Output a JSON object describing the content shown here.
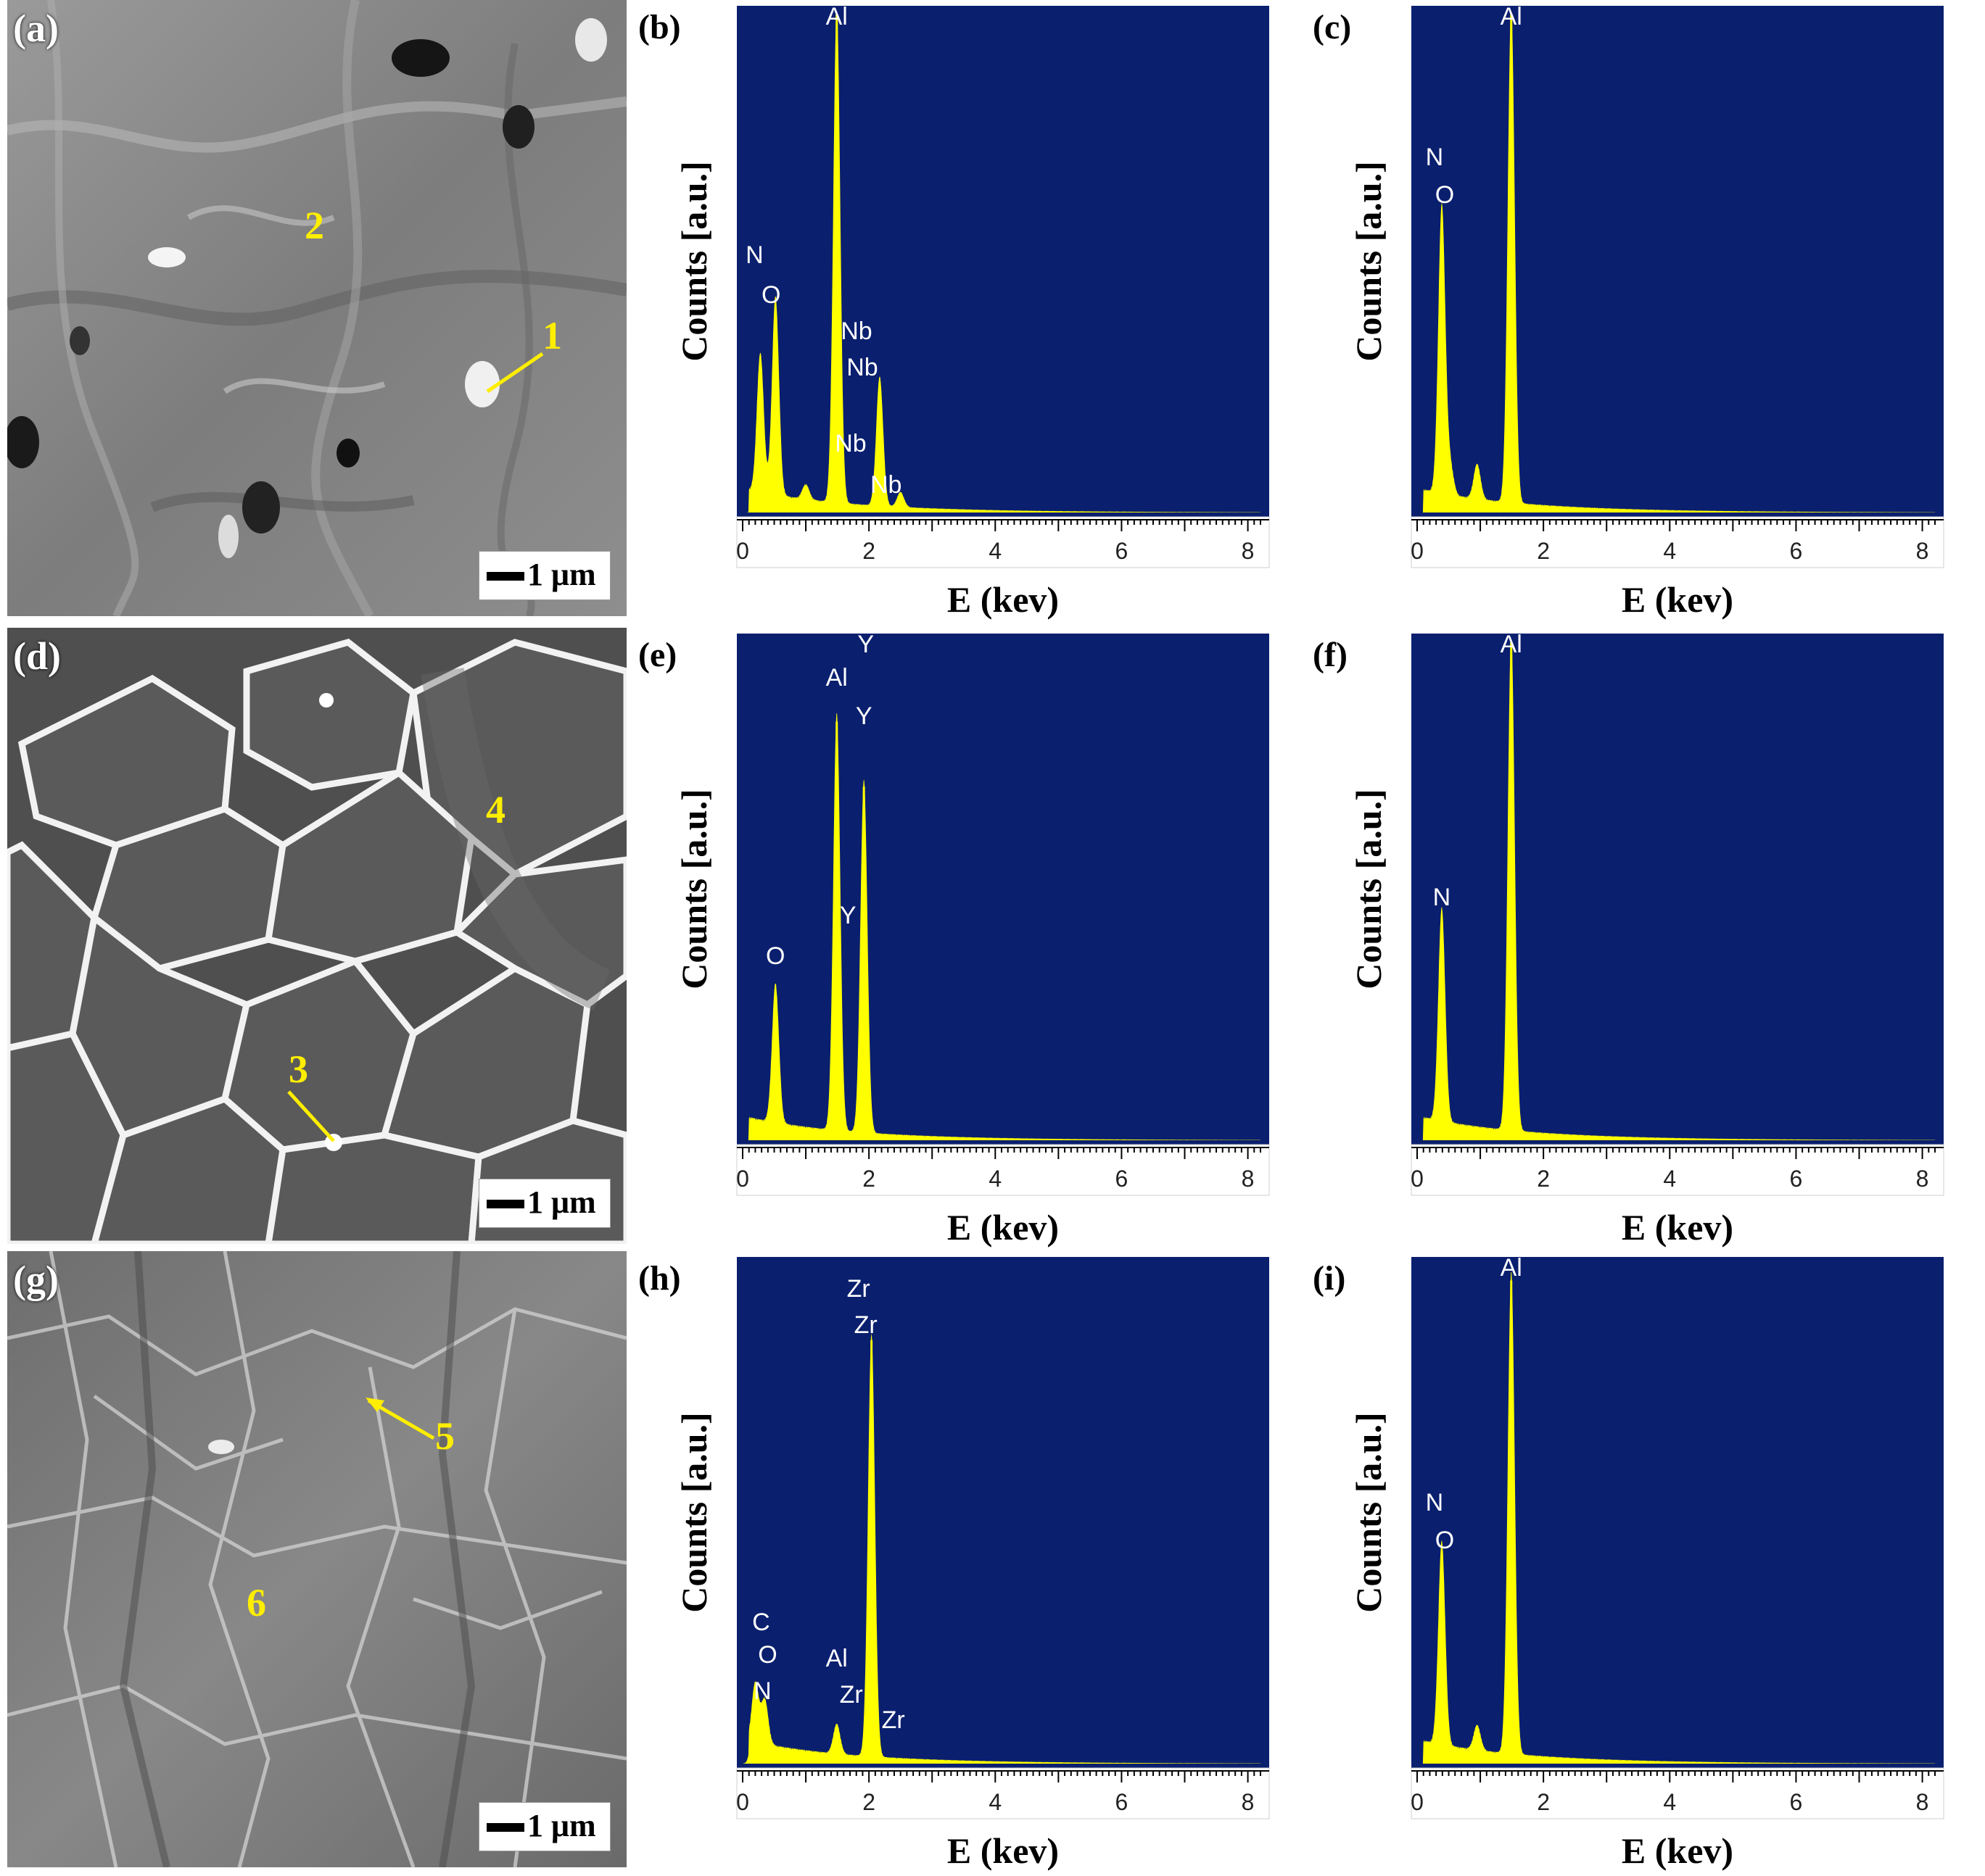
{
  "figure": {
    "scale_label": "1 μm",
    "ylabel": "Counts [a.u.]",
    "xlabel": "E (kev)",
    "x_ticks": [
      0,
      2,
      4,
      6,
      8
    ],
    "colors": {
      "plot_bg": "#0a1f6e",
      "spectrum": "#ffff00",
      "marker": "#ffee00",
      "peak_label": "#ffffff"
    }
  },
  "rows": [
    {
      "sem": {
        "tag": "(a)",
        "style": "fracture",
        "points": [
          "1",
          "2"
        ]
      },
      "eds": [
        {
          "tag": "(b)",
          "labels": [
            "Al",
            "N",
            "O",
            "Nb",
            "Nb",
            "Nb",
            "Nb"
          ]
        },
        {
          "tag": "(c)",
          "labels": [
            "Al",
            "N",
            "O"
          ]
        }
      ]
    },
    {
      "sem": {
        "tag": "(d)",
        "style": "grains",
        "points": [
          "3",
          "4"
        ]
      },
      "eds": [
        {
          "tag": "(e)",
          "labels": [
            "Y",
            "Al",
            "Y",
            "Y",
            "O"
          ]
        },
        {
          "tag": "(f)",
          "labels": [
            "Al",
            "N"
          ]
        }
      ]
    },
    {
      "sem": {
        "tag": "(g)",
        "style": "fracture",
        "points": [
          "5",
          "6"
        ]
      },
      "eds": [
        {
          "tag": "(h)",
          "labels": [
            "Zr",
            "Zr",
            "C",
            "O",
            "N",
            "Al",
            "Zr",
            "Zr"
          ]
        },
        {
          "tag": "(i)",
          "labels": [
            "Al",
            "N",
            "O"
          ]
        }
      ]
    }
  ],
  "chart_data": [
    {
      "type": "line",
      "title": "(b)",
      "xlabel": "E (kev)",
      "ylabel": "Counts [a.u.]",
      "xlim": [
        0,
        8.2
      ],
      "ylim": [
        0,
        100
      ],
      "peaks": [
        {
          "x": 0.28,
          "y": 28
        },
        {
          "x": 0.52,
          "y": 40
        },
        {
          "x": 1.0,
          "y": 3
        },
        {
          "x": 1.49,
          "y": 100
        },
        {
          "x": 2.17,
          "y": 26
        },
        {
          "x": 2.5,
          "y": 3
        }
      ]
    },
    {
      "type": "line",
      "title": "(c)",
      "xlabel": "E (kev)",
      "ylabel": "Counts [a.u.]",
      "xlim": [
        0,
        8.2
      ],
      "ylim": [
        0,
        100
      ],
      "peaks": [
        {
          "x": 0.39,
          "y": 58
        },
        {
          "x": 0.52,
          "y": 6
        },
        {
          "x": 0.95,
          "y": 7
        },
        {
          "x": 1.49,
          "y": 100
        }
      ]
    },
    {
      "type": "line",
      "title": "(e)",
      "xlabel": "E (kev)",
      "ylabel": "Counts [a.u.]",
      "xlim": [
        0,
        8.2
      ],
      "ylim": [
        0,
        100
      ],
      "peaks": [
        {
          "x": 0.52,
          "y": 28
        },
        {
          "x": 1.49,
          "y": 84
        },
        {
          "x": 1.92,
          "y": 71
        }
      ]
    },
    {
      "type": "line",
      "title": "(f)",
      "xlabel": "E (kev)",
      "ylabel": "Counts [a.u.]",
      "xlim": [
        0,
        8.2
      ],
      "ylim": [
        0,
        100
      ],
      "peaks": [
        {
          "x": 0.39,
          "y": 43
        },
        {
          "x": 1.49,
          "y": 100
        }
      ]
    },
    {
      "type": "line",
      "title": "(h)",
      "xlabel": "E (kev)",
      "ylabel": "Counts [a.u.]",
      "xlim": [
        0,
        8.2
      ],
      "ylim": [
        0,
        100
      ],
      "peaks": [
        {
          "x": 0.2,
          "y": 12
        },
        {
          "x": 0.35,
          "y": 9
        },
        {
          "x": 1.49,
          "y": 6
        },
        {
          "x": 2.04,
          "y": 85
        }
      ]
    },
    {
      "type": "line",
      "title": "(i)",
      "xlabel": "E (kev)",
      "ylabel": "Counts [a.u.]",
      "xlim": [
        0,
        8.2
      ],
      "ylim": [
        0,
        100
      ],
      "peaks": [
        {
          "x": 0.39,
          "y": 41
        },
        {
          "x": 0.95,
          "y": 5
        },
        {
          "x": 1.49,
          "y": 97
        }
      ]
    }
  ]
}
